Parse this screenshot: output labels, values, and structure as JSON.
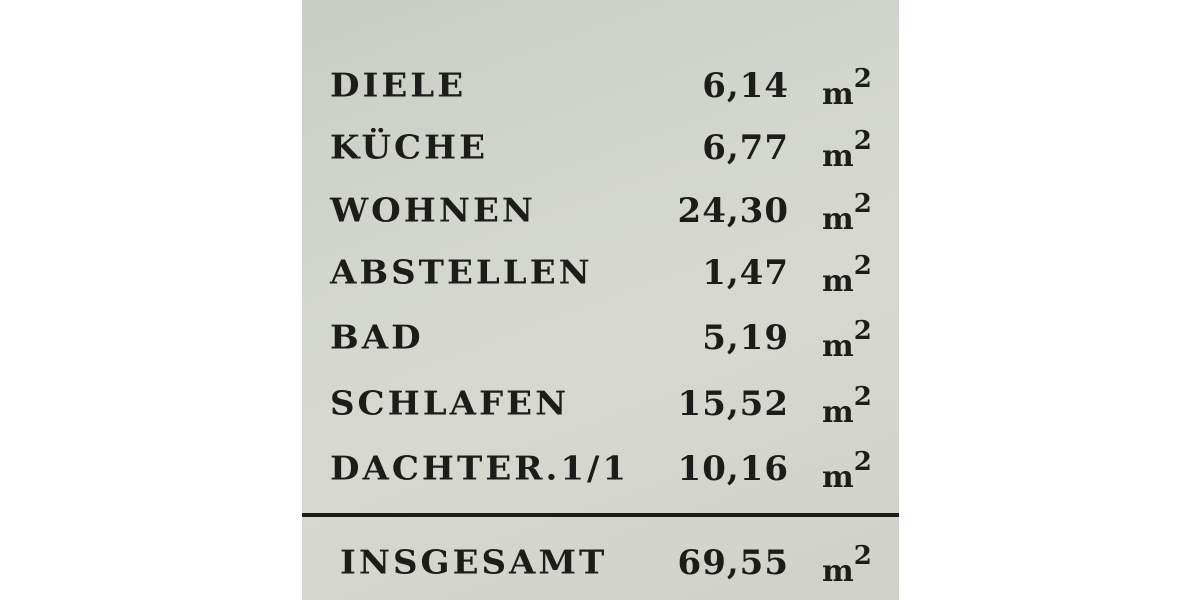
{
  "rows": [
    {
      "label": "DIELE",
      "value": "6,14",
      "unit": "m",
      "exp": "2"
    },
    {
      "label": "KÜCHE",
      "value": "6,77",
      "unit": "m",
      "exp": "2"
    },
    {
      "label": "WOHNEN",
      "value": "24,30",
      "unit": "m",
      "exp": "2"
    },
    {
      "label": "ABSTELLEN",
      "value": "1,47",
      "unit": "m",
      "exp": "2"
    },
    {
      "label": "BAD",
      "value": "5,19",
      "unit": "m",
      "exp": "2"
    },
    {
      "label": "SCHLAFEN",
      "value": "15,52",
      "unit": "m",
      "exp": "2"
    },
    {
      "label": "DACHTER.1/1",
      "value": "10,16",
      "unit": "m",
      "exp": "2"
    }
  ],
  "total": {
    "label": "INSGESAMT",
    "value": "69,55",
    "unit": "m",
    "exp": "2"
  }
}
